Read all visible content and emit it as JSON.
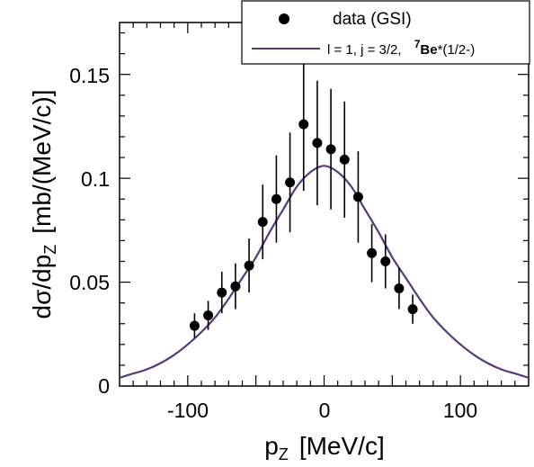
{
  "chart_data": {
    "type": "scatter",
    "xlim": [
      -150,
      150
    ],
    "ylim": [
      0,
      0.175
    ],
    "x_ticks": [
      -100,
      0,
      100
    ],
    "x_tick_labels": [
      "-100",
      "0",
      "100"
    ],
    "y_ticks": [
      0,
      0.05,
      0.1,
      0.15
    ],
    "y_tick_labels": [
      "0",
      "0.05",
      "0.1",
      "0.15"
    ],
    "xlabel": {
      "main": "p",
      "sub": "Z",
      "unit": "[MeV/c]"
    },
    "ylabel": {
      "main": "dσ/dp",
      "sub": "Z",
      "unit": "[mb/(MeV/c)]"
    },
    "legend_position": "top-right",
    "legend": {
      "data_label": "data (GSI)",
      "curve_prefix": "l = 1,  j = 3/2,  ",
      "curve_sup": "7",
      "curve_bold": "Be",
      "curve_suffix": "*(1/2-)"
    },
    "colors": {
      "data": "#000000",
      "curve": "#553a7a"
    },
    "series": [
      {
        "name": "data (GSI)",
        "kind": "points",
        "x": [
          -95,
          -85,
          -75,
          -65,
          -55,
          -45,
          -35,
          -25,
          -15,
          -5,
          5,
          15,
          25,
          35,
          45,
          55,
          65
        ],
        "y": [
          0.029,
          0.034,
          0.045,
          0.048,
          0.058,
          0.079,
          0.09,
          0.098,
          0.126,
          0.117,
          0.114,
          0.109,
          0.091,
          0.064,
          0.06,
          0.047,
          0.037
        ],
        "err": [
          0.006,
          0.007,
          0.01,
          0.011,
          0.013,
          0.018,
          0.021,
          0.024,
          0.032,
          0.03,
          0.029,
          0.028,
          0.022,
          0.014,
          0.013,
          0.01,
          0.007
        ]
      },
      {
        "name": "l = 1,  j = 3/2,  7Be*(1/2-)",
        "kind": "curve",
        "x": [
          -150,
          -140,
          -130,
          -120,
          -110,
          -100,
          -90,
          -80,
          -70,
          -60,
          -50,
          -40,
          -30,
          -20,
          -10,
          0,
          10,
          20,
          30,
          40,
          50,
          60,
          70,
          80,
          90,
          100,
          110,
          120,
          130,
          140,
          150
        ],
        "y": [
          0.004,
          0.006,
          0.008,
          0.011,
          0.015,
          0.02,
          0.026,
          0.033,
          0.042,
          0.052,
          0.062,
          0.074,
          0.085,
          0.096,
          0.103,
          0.106,
          0.103,
          0.096,
          0.085,
          0.074,
          0.062,
          0.052,
          0.042,
          0.033,
          0.026,
          0.02,
          0.015,
          0.011,
          0.008,
          0.006,
          0.004
        ]
      }
    ]
  }
}
